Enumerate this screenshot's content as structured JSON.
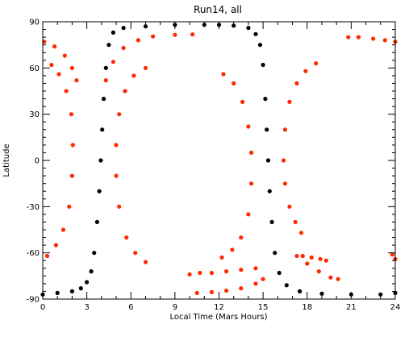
{
  "chart_data": {
    "type": "scatter",
    "title": "Run14, all",
    "xlabel": "Local Time (Mars Hours)",
    "ylabel": "Latitude",
    "xlim": [
      0,
      24
    ],
    "ylim": [
      -90,
      90
    ],
    "xticks": [
      0,
      3,
      6,
      9,
      12,
      15,
      18,
      21,
      24
    ],
    "yticks": [
      -90,
      -60,
      -30,
      0,
      30,
      60,
      90
    ],
    "grid": false,
    "legend": "none",
    "series": [
      {
        "color": "#000000",
        "points": [
          [
            0.0,
            -87
          ],
          [
            1.0,
            -86
          ],
          [
            2.0,
            -85
          ],
          [
            2.6,
            -83
          ],
          [
            3.0,
            -79
          ],
          [
            3.3,
            -72
          ],
          [
            3.5,
            -60
          ],
          [
            3.7,
            -40
          ],
          [
            3.85,
            -20
          ],
          [
            3.95,
            0
          ],
          [
            4.05,
            20
          ],
          [
            4.15,
            40
          ],
          [
            4.3,
            60
          ],
          [
            4.5,
            75
          ],
          [
            4.8,
            83
          ],
          [
            5.5,
            86
          ],
          [
            7.0,
            87
          ],
          [
            9.0,
            88
          ],
          [
            11.0,
            88
          ],
          [
            12.0,
            88
          ],
          [
            13.0,
            87.5
          ],
          [
            14.0,
            86
          ],
          [
            14.5,
            82
          ],
          [
            14.8,
            75
          ],
          [
            15.0,
            62
          ],
          [
            15.15,
            40
          ],
          [
            15.25,
            20
          ],
          [
            15.35,
            0
          ],
          [
            15.45,
            -20
          ],
          [
            15.6,
            -40
          ],
          [
            15.8,
            -60
          ],
          [
            16.1,
            -73
          ],
          [
            16.6,
            -81
          ],
          [
            17.5,
            -85
          ],
          [
            19.0,
            -86.5
          ],
          [
            21.0,
            -87
          ],
          [
            23.0,
            -87
          ],
          [
            24.0,
            -86
          ]
        ]
      },
      {
        "color": "#ff2a00",
        "points": [
          [
            0.1,
            77
          ],
          [
            0.8,
            74
          ],
          [
            1.5,
            68
          ],
          [
            2.0,
            60
          ],
          [
            2.3,
            52
          ],
          [
            0.6,
            62
          ],
          [
            1.1,
            56
          ],
          [
            1.6,
            45
          ],
          [
            1.95,
            30
          ],
          [
            2.05,
            10
          ],
          [
            2.0,
            -10
          ],
          [
            1.8,
            -30
          ],
          [
            1.4,
            -45
          ],
          [
            0.9,
            -55
          ],
          [
            0.3,
            -62
          ],
          [
            4.3,
            52
          ],
          [
            4.8,
            64
          ],
          [
            5.5,
            73
          ],
          [
            6.5,
            78
          ],
          [
            7.5,
            80.5
          ],
          [
            9.0,
            81.5
          ],
          [
            10.2,
            81.8
          ],
          [
            7.0,
            60
          ],
          [
            6.2,
            55
          ],
          [
            5.6,
            45
          ],
          [
            5.2,
            30
          ],
          [
            5.0,
            10
          ],
          [
            5.0,
            -10
          ],
          [
            5.2,
            -30
          ],
          [
            5.7,
            -50
          ],
          [
            6.3,
            -60
          ],
          [
            7.0,
            -66
          ],
          [
            12.3,
            56
          ],
          [
            13.0,
            50
          ],
          [
            13.6,
            38
          ],
          [
            14.0,
            22
          ],
          [
            14.2,
            5
          ],
          [
            14.2,
            -15
          ],
          [
            14.0,
            -35
          ],
          [
            13.5,
            -50
          ],
          [
            12.9,
            -58
          ],
          [
            12.2,
            -63
          ],
          [
            10.0,
            -74
          ],
          [
            10.7,
            -73
          ],
          [
            11.5,
            -73
          ],
          [
            12.5,
            -72
          ],
          [
            13.5,
            -71
          ],
          [
            14.5,
            -70
          ],
          [
            10.5,
            -86
          ],
          [
            11.5,
            -85.5
          ],
          [
            12.5,
            -84.5
          ],
          [
            13.5,
            -83
          ],
          [
            14.5,
            -80
          ],
          [
            15.0,
            -77
          ],
          [
            18.6,
            63
          ],
          [
            17.9,
            58
          ],
          [
            17.3,
            50
          ],
          [
            16.8,
            38
          ],
          [
            16.5,
            20
          ],
          [
            16.4,
            0
          ],
          [
            16.5,
            -15
          ],
          [
            16.8,
            -30
          ],
          [
            17.2,
            -40
          ],
          [
            17.6,
            -47
          ],
          [
            17.3,
            -62
          ],
          [
            18.0,
            -67
          ],
          [
            18.8,
            -72
          ],
          [
            19.6,
            -76
          ],
          [
            20.1,
            -77
          ],
          [
            17.7,
            -62
          ],
          [
            18.3,
            -63
          ],
          [
            18.9,
            -64
          ],
          [
            19.3,
            -65
          ],
          [
            20.8,
            80
          ],
          [
            21.5,
            80
          ],
          [
            22.5,
            79
          ],
          [
            23.3,
            78
          ],
          [
            24.0,
            77
          ],
          [
            23.8,
            -61
          ],
          [
            24.0,
            -64
          ]
        ]
      }
    ]
  }
}
